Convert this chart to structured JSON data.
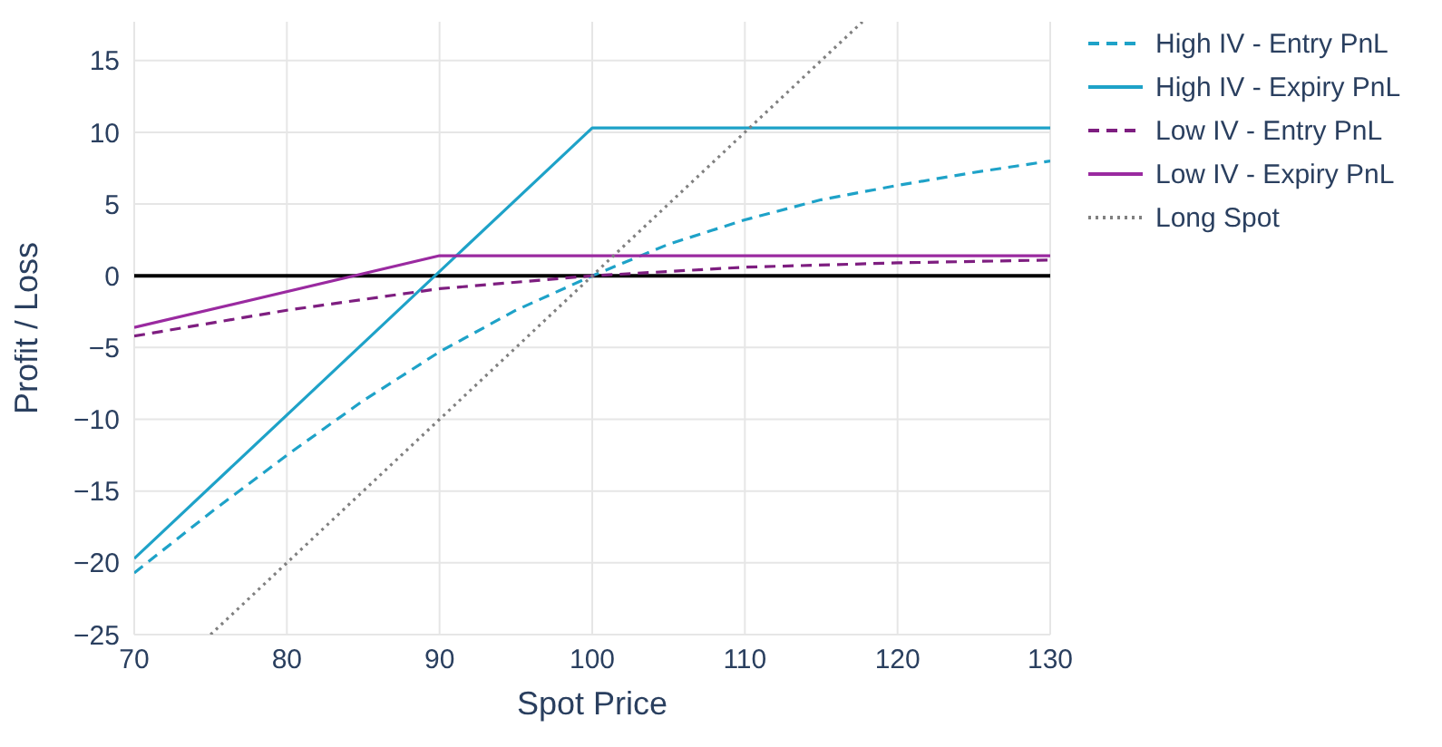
{
  "chart_data": {
    "type": "line",
    "xlabel": "Spot Price",
    "ylabel": "Profit / Loss",
    "xlim": [
      70,
      130
    ],
    "xticks": [
      70,
      80,
      90,
      100,
      110,
      120,
      130
    ],
    "ylim": [
      -25,
      17.7
    ],
    "yticks": [
      {
        "value": -25,
        "label": "−25"
      },
      {
        "value": -20,
        "label": "−20"
      },
      {
        "value": -15,
        "label": "−15"
      },
      {
        "value": -10,
        "label": "−10"
      },
      {
        "value": -5,
        "label": "−5"
      },
      0,
      5,
      10,
      15
    ],
    "grid": true,
    "legend": "top right",
    "marker": "none",
    "ref_lines": [
      {
        "axis": "y",
        "value": 0,
        "color": "#000000"
      }
    ],
    "series": [
      {
        "name": "High IV - Entry PnL",
        "color": "#1ea2c8",
        "line_style": "dashed",
        "x": [
          70,
          75,
          80,
          85,
          90,
          95,
          100,
          105,
          110,
          115,
          120,
          125,
          130
        ],
        "values": [
          -20.7,
          -16.5,
          -12.5,
          -8.7,
          -5.3,
          -2.4,
          0,
          2.2,
          3.9,
          5.3,
          6.3,
          7.2,
          8.0
        ]
      },
      {
        "name": "High IV - Expiry PnL",
        "color": "#1ea2c8",
        "line_style": "solid",
        "x": [
          70,
          100,
          130
        ],
        "values": [
          -19.7,
          10.3,
          10.3
        ]
      },
      {
        "name": "Low IV - Entry PnL",
        "color": "#7e1e80",
        "line_style": "dashed",
        "x": [
          70,
          80,
          90,
          100,
          110,
          120,
          130
        ],
        "values": [
          -4.2,
          -2.4,
          -0.9,
          0,
          0.6,
          0.9,
          1.1
        ]
      },
      {
        "name": "Low IV - Expiry PnL",
        "color": "#9a2aa0",
        "line_style": "solid",
        "x": [
          70,
          90,
          130
        ],
        "values": [
          -3.6,
          1.4,
          1.4
        ]
      },
      {
        "name": "Long Spot",
        "color": "#808080",
        "line_style": "dotted",
        "x": [
          75,
          117.7
        ],
        "values": [
          -25,
          17.7
        ]
      }
    ]
  }
}
